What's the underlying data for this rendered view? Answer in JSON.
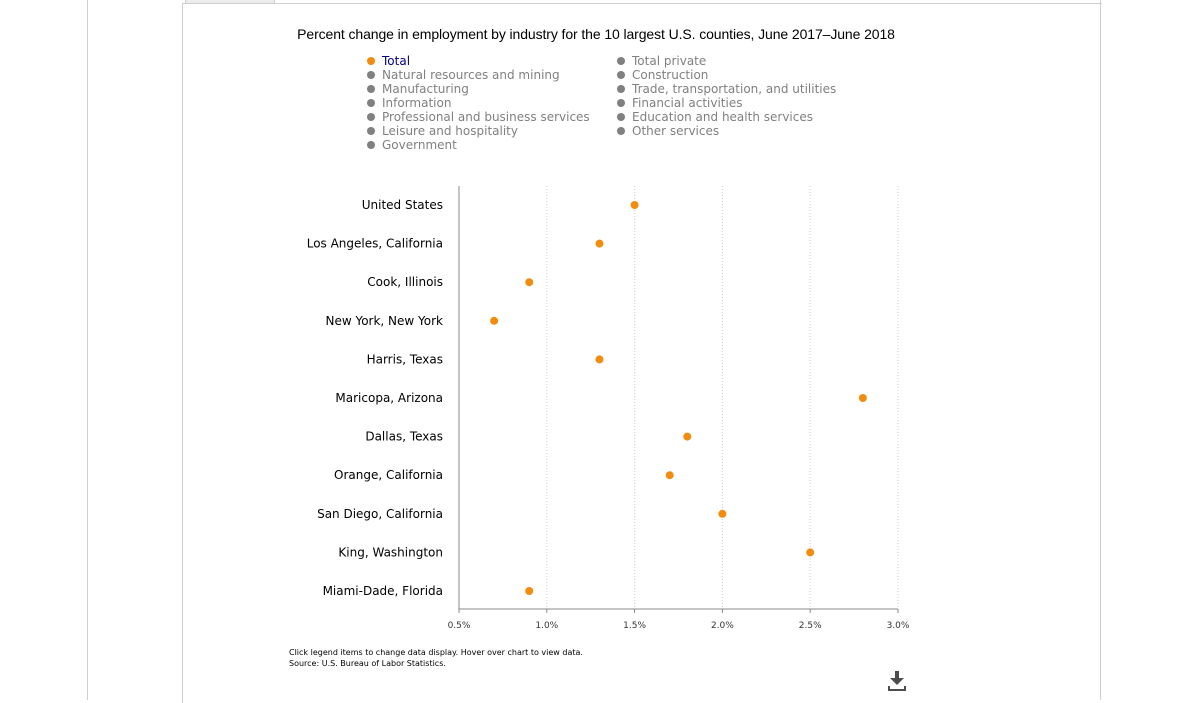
{
  "chart_data": {
    "type": "scatter",
    "title": "Percent change in employment by industry for the 10 largest U.S. counties, June 2017–June 2018",
    "legend": {
      "placement": "top",
      "columns": [
        [
          "Total",
          "Natural resources and mining",
          "Manufacturing",
          "Information",
          "Professional and business services",
          "Leisure and hospitality",
          "Government"
        ],
        [
          "Total private",
          "Construction",
          "Trade, transportation, and utilities",
          "Financial activities",
          "Education and health services",
          "Other services"
        ]
      ],
      "active": "Total",
      "active_color": "#f28c0f",
      "inactive_color": "#808080"
    },
    "categories": [
      "United States",
      "Los Angeles, California",
      "Cook, Illinois",
      "New York, New York",
      "Harris, Texas",
      "Maricopa, Arizona",
      "Dallas, Texas",
      "Orange, California",
      "San Diego, California",
      "King, Washington",
      "Miami-Dade, Florida"
    ],
    "series": [
      {
        "name": "Total",
        "color": "#f28c0f",
        "values": [
          1.5,
          1.3,
          0.9,
          0.7,
          1.3,
          2.8,
          1.8,
          1.7,
          2.0,
          2.5,
          0.9
        ]
      }
    ],
    "xlim": [
      0.5,
      3.0
    ],
    "x_ticks": [
      "0.5%",
      "1.0%",
      "1.5%",
      "2.0%",
      "2.5%",
      "3.0%"
    ],
    "x_tick_values": [
      0.5,
      1.0,
      1.5,
      2.0,
      2.5,
      3.0
    ],
    "grid": "vertical dotted"
  },
  "footer": {
    "note": "Click legend items to change data display. Hover over chart to view data.",
    "source": "Source: U.S. Bureau of Labor Statistics."
  },
  "icons": {
    "download": "download-icon"
  }
}
